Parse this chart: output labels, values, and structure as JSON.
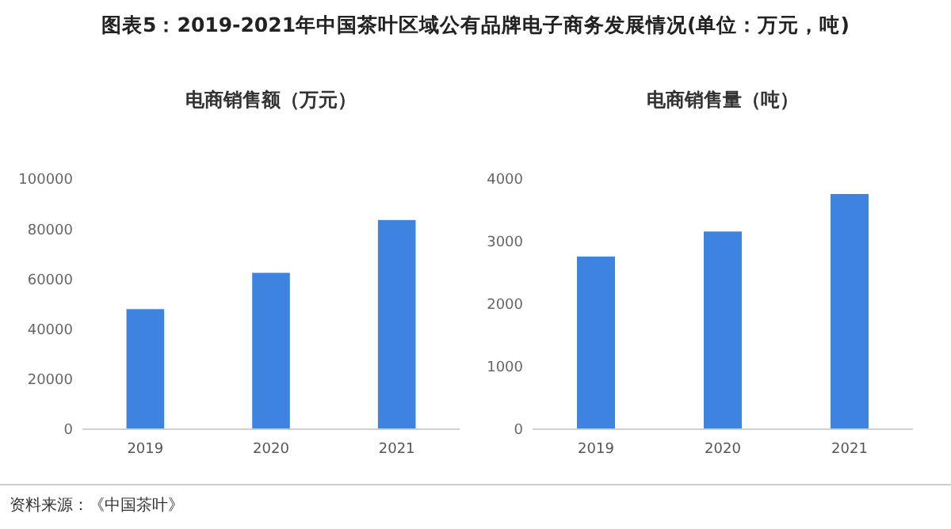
{
  "chart_data": [
    {
      "type": "bar",
      "title": "电商销售额（万元）",
      "categories": [
        "2019",
        "2020",
        "2021"
      ],
      "values": [
        48000,
        62500,
        83600
      ],
      "color": "#3f83e0",
      "ylim": [
        0,
        100000
      ],
      "yticks": [
        0,
        20000,
        40000,
        60000,
        80000,
        100000
      ],
      "grid": false,
      "annotations": [
        "图表5：2019-2021年中国茶叶区域公有品牌电子商务发展情况(单位：万元，吨)",
        "资料来源：《中国茶叶》"
      ]
    },
    {
      "type": "bar",
      "title": "电商销售量（吨）",
      "categories": [
        "2019",
        "2020",
        "2021"
      ],
      "values": [
        2760,
        3160,
        3760
      ],
      "color": "#3f83e0",
      "ylim": [
        0,
        4000
      ],
      "yticks": [
        0,
        1000,
        2000,
        3000,
        4000
      ],
      "grid": false
    }
  ]
}
